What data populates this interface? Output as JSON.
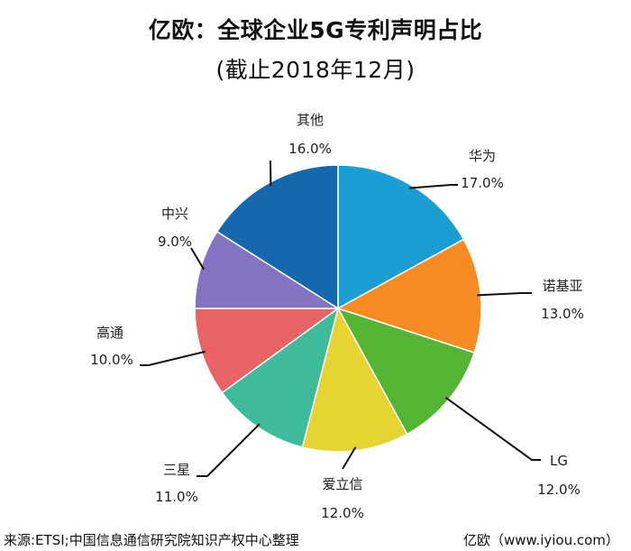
{
  "chart_data": {
    "type": "pie",
    "title": "亿欧：全球企业5G专利声明占比",
    "subtitle": "(截止2018年12月)",
    "slices": [
      {
        "name": "华为",
        "label": "17.0%",
        "value": 17.0,
        "color": "#1a9fd4"
      },
      {
        "name": "诺基亚",
        "label": "13.0%",
        "value": 13.0,
        "color": "#f68b22"
      },
      {
        "name": "LG",
        "label": "12.0%",
        "value": 12.0,
        "color": "#54b535"
      },
      {
        "name": "爱立信",
        "label": "12.0%",
        "value": 12.0,
        "color": "#e6d433"
      },
      {
        "name": "三星",
        "label": "11.0%",
        "value": 11.0,
        "color": "#3dbb9a"
      },
      {
        "name": "高通",
        "label": "10.0%",
        "value": 10.0,
        "color": "#e86366"
      },
      {
        "name": "中兴",
        "label": "9.0%",
        "value": 9.0,
        "color": "#8472c2"
      },
      {
        "name": "其他",
        "label": "16.0%",
        "value": 16.0,
        "color": "#1568ad"
      }
    ],
    "start_angle_deg": 0,
    "direction": "clockwise"
  },
  "footer": {
    "source": "来源:ETSI;中国信息通信研究院知识产权中心整理",
    "credit": "亿欧（www.iyiou.com）"
  }
}
